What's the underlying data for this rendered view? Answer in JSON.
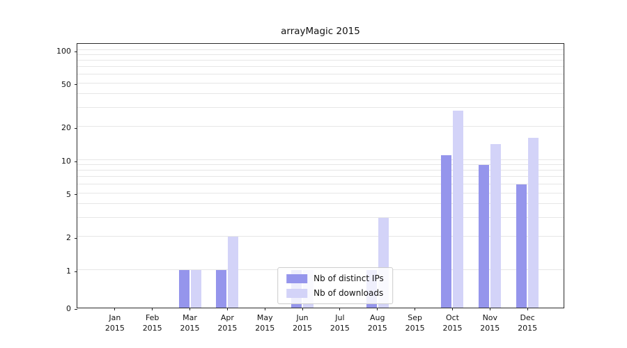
{
  "chart_data": {
    "type": "bar",
    "title": "arrayMagic 2015",
    "yscale": "log",
    "xlabel": "",
    "ylabel": "",
    "categories": [
      "Jan 2015",
      "Feb 2015",
      "Mar 2015",
      "Apr 2015",
      "May 2015",
      "Jun 2015",
      "Jul 2015",
      "Aug 2015",
      "Sep 2015",
      "Oct 2015",
      "Nov 2015",
      "Dec 2015"
    ],
    "series": [
      {
        "name": "Nb of distinct IPs",
        "color": "#9595ec",
        "values": [
          0,
          0,
          1,
          1,
          0,
          1,
          0,
          1,
          0,
          11,
          9,
          6
        ]
      },
      {
        "name": "Nb of downloads",
        "color": "#d3d3f8",
        "values": [
          0,
          0,
          1,
          2,
          0,
          1,
          0,
          3,
          0,
          28,
          14,
          16
        ]
      }
    ],
    "yticks": [
      0,
      1,
      2,
      5,
      10,
      20,
      50,
      100
    ],
    "grid_values": [
      1,
      2,
      3,
      4,
      5,
      6,
      7,
      8,
      9,
      10,
      20,
      30,
      40,
      50,
      60,
      70,
      80,
      90,
      100
    ],
    "grid": "horizontal",
    "legend_position": "lower-center",
    "background_color": "#ffffff"
  }
}
